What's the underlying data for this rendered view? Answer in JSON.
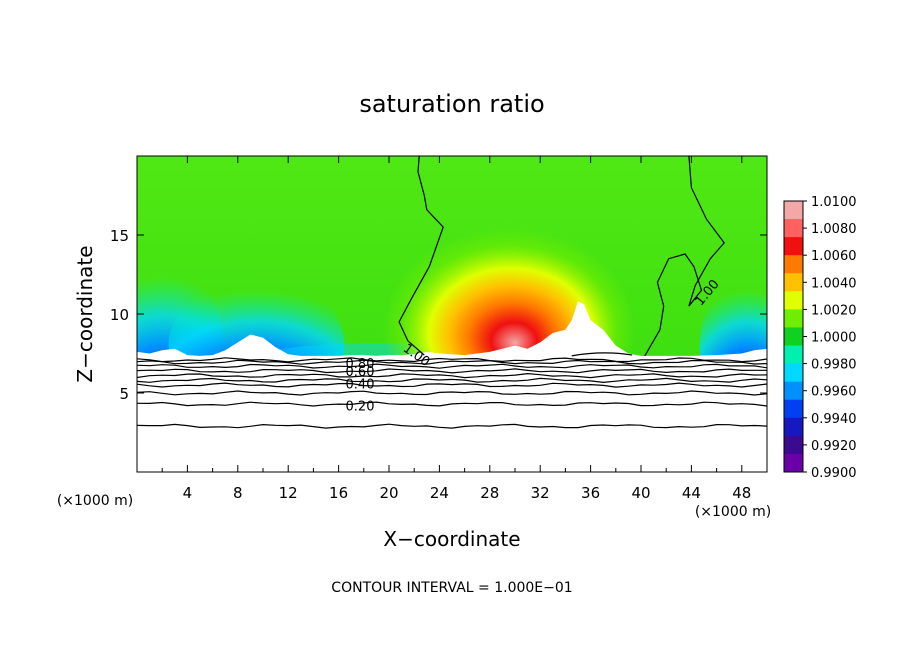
{
  "chart_data": {
    "type": "heatmap",
    "title": "saturation ratio",
    "xlabel": "X−coordinate",
    "ylabel": "Z−coordinate",
    "x_unit_left": "(×1000 m)",
    "x_unit_right": "(×1000 m)",
    "footer": "CONTOUR INTERVAL = 1.000E−01",
    "xlim": [
      0,
      50
    ],
    "ylim": [
      0,
      20
    ],
    "x_ticks": [
      "4",
      "8",
      "12",
      "16",
      "20",
      "24",
      "28",
      "32",
      "36",
      "40",
      "44",
      "48"
    ],
    "x_tick_values": [
      4,
      8,
      12,
      16,
      20,
      24,
      28,
      32,
      36,
      40,
      44,
      48
    ],
    "y_ticks": [
      "5",
      "10",
      "15"
    ],
    "y_tick_values": [
      5,
      10,
      15
    ],
    "colorbar": {
      "labels": [
        "1.0100",
        "1.0080",
        "1.0060",
        "1.0040",
        "1.0020",
        "1.0000",
        "0.9980",
        "0.9960",
        "0.9940",
        "0.9920",
        "0.9900"
      ],
      "values": [
        1.01,
        1.008,
        1.006,
        1.004,
        1.002,
        1.0,
        0.998,
        0.996,
        0.994,
        0.992,
        0.99
      ],
      "colors": [
        "#f4a7a7",
        "#ff6060",
        "#f01010",
        "#ff7a00",
        "#ffc000",
        "#e0ff00",
        "#70ee00",
        "#10d020",
        "#00f0b0",
        "#00d8ff",
        "#0090ff",
        "#0040f0",
        "#1818c0",
        "#3a0a90",
        "#6a00a8"
      ]
    },
    "contour_labels": [
      {
        "text": "1.00",
        "x": 22.0,
        "z": 7.5
      },
      {
        "text": "1.00",
        "x": 45.5,
        "z": 11.5
      },
      {
        "text": "0.80",
        "x": 17.7,
        "z": 6.9
      },
      {
        "text": "0.60",
        "x": 17.7,
        "z": 6.4
      },
      {
        "text": "0.40",
        "x": 17.7,
        "z": 5.6
      },
      {
        "text": "0.20",
        "x": 17.7,
        "z": 4.2
      }
    ],
    "contour_levels_below": [
      2.9,
      4.3,
      5.0,
      5.5,
      5.8,
      6.1,
      6.4,
      6.7,
      6.95,
      7.1
    ],
    "terrain_top": [
      [
        0,
        7.6
      ],
      [
        1,
        7.5
      ],
      [
        2,
        7.7
      ],
      [
        3,
        7.8
      ],
      [
        4,
        7.4
      ],
      [
        5,
        7.35
      ],
      [
        6,
        7.4
      ],
      [
        7,
        7.7
      ],
      [
        8,
        8.2
      ],
      [
        9,
        8.7
      ],
      [
        10,
        8.5
      ],
      [
        11,
        7.9
      ],
      [
        12,
        7.45
      ],
      [
        13,
        7.35
      ],
      [
        14,
        7.35
      ],
      [
        15,
        7.35
      ],
      [
        16,
        7.35
      ],
      [
        17,
        7.4
      ],
      [
        18,
        7.4
      ],
      [
        19,
        7.35
      ],
      [
        20,
        7.4
      ],
      [
        21,
        7.4
      ],
      [
        22,
        7.45
      ],
      [
        23,
        7.6
      ],
      [
        24,
        7.5
      ],
      [
        26,
        7.4
      ],
      [
        28,
        7.6
      ],
      [
        30,
        8.0
      ],
      [
        31,
        7.8
      ],
      [
        32,
        8.2
      ],
      [
        33,
        8.8
      ],
      [
        34,
        9.0
      ],
      [
        34.5,
        9.6
      ],
      [
        35,
        10.8
      ],
      [
        35.5,
        10.6
      ],
      [
        36,
        9.6
      ],
      [
        37,
        9.0
      ],
      [
        38,
        8.0
      ],
      [
        39,
        7.5
      ],
      [
        40,
        7.35
      ],
      [
        42,
        7.35
      ],
      [
        44,
        7.35
      ],
      [
        46,
        7.4
      ],
      [
        48,
        7.5
      ],
      [
        49,
        7.7
      ],
      [
        50,
        7.8
      ]
    ]
  }
}
